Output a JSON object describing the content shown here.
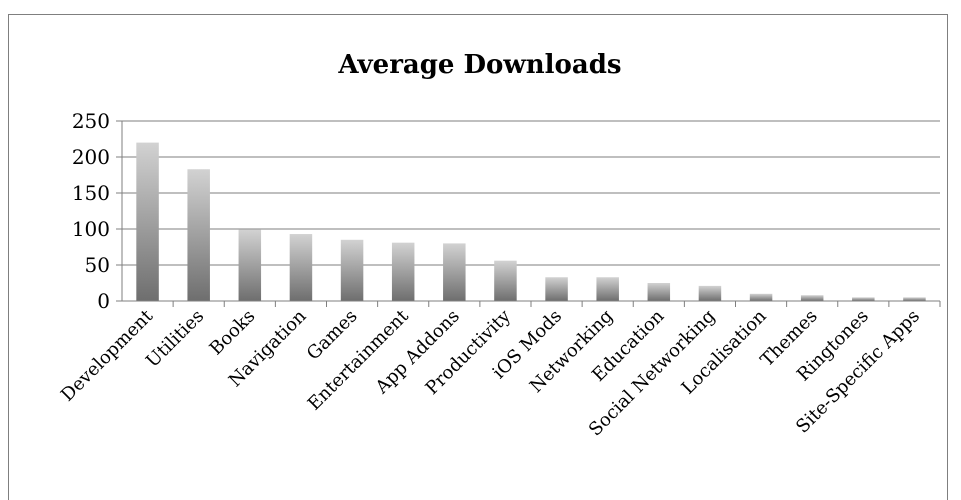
{
  "chart_data": {
    "type": "bar",
    "title": "Average Downloads",
    "xlabel": "",
    "ylabel": "",
    "categories": [
      "Development",
      "Utilities",
      "Books",
      "Navigation",
      "Games",
      "Entertainment",
      "App Addons",
      "Productivity",
      "iOS Mods",
      "Networking",
      "Education",
      "Social Networking",
      "Localisation",
      "Themes",
      "Ringtones",
      "Site-Specific Apps"
    ],
    "values": [
      220,
      183,
      99,
      93,
      85,
      81,
      80,
      56,
      33,
      33,
      25,
      21,
      10,
      8,
      5,
      5
    ],
    "ylim": [
      0,
      250
    ],
    "yticks": [
      "0",
      "50",
      "100",
      "150",
      "200",
      "250"
    ],
    "grid": true,
    "legend": "none",
    "colors": {
      "bar_top": "#d2d2d2",
      "bar_bottom": "#6e6e6e",
      "grid": "#7f7f7f"
    }
  }
}
